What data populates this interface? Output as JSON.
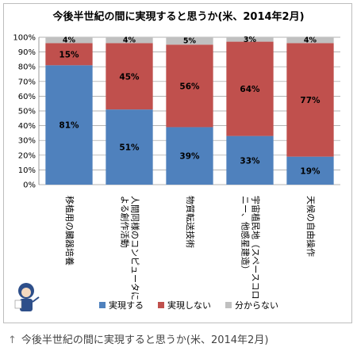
{
  "chart_data": {
    "type": "bar",
    "stacked": true,
    "orientation": "vertical",
    "title": "今後半世紀の間に実現すると思うか(米、2014年2月)",
    "categories": [
      "移植用の臓器培養",
      "人間同様のコンピュータによる創作活動",
      "物質転送技術",
      "宇宙植民地（スペースコロニー、他惑星建造）",
      "天候の自由操作"
    ],
    "series": [
      {
        "name": "実現する",
        "color": "#4f81bd",
        "values": [
          81,
          51,
          39,
          33,
          19
        ]
      },
      {
        "name": "実現しない",
        "color": "#c0504d",
        "values": [
          15,
          45,
          56,
          64,
          77
        ]
      },
      {
        "name": "分からない",
        "color": "#c0c0c0",
        "values": [
          4,
          4,
          5,
          3,
          4
        ]
      }
    ],
    "data_labels": [
      [
        "81%",
        "51%",
        "39%",
        "33%",
        "19%"
      ],
      [
        "15%",
        "45%",
        "56%",
        "64%",
        "77%"
      ],
      [
        "4%",
        "4%",
        "5%",
        "3%",
        "4%"
      ]
    ],
    "y_ticks": [
      "0%",
      "10%",
      "20%",
      "30%",
      "40%",
      "50%",
      "60%",
      "70%",
      "80%",
      "90%",
      "100%"
    ],
    "ylim": [
      0,
      100
    ],
    "grid": true,
    "legend_position": "bottom"
  },
  "caption": {
    "arrow": "↑",
    "text": "今後半世紀の間に実現すると思うか(米、2014年2月)"
  }
}
